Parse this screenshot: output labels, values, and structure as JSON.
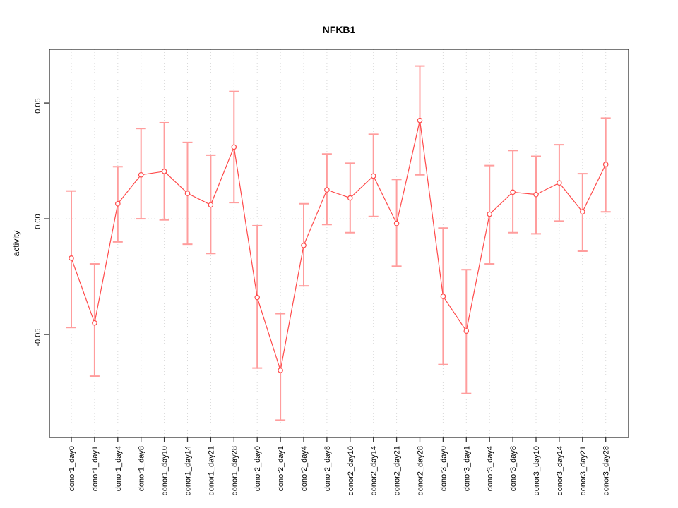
{
  "title": "NFKB1",
  "ylabel": "activity",
  "colors": {
    "series_line": "#ff4a4a",
    "error_bar": "#ff9d9d",
    "grid": "#d8d8d8",
    "zero_line": "#d8d8d8",
    "axis": "#333333",
    "background": "#ffffff"
  },
  "chart_data": {
    "type": "line",
    "title": "NFKB1",
    "xlabel": "",
    "ylabel": "activity",
    "legend": "none",
    "grid": "vertical dotted gridlines per category; dotted horizontal line at y=0",
    "point_style": "open-circle",
    "error_bars": true,
    "ylim": [
      -0.0945,
      0.0732
    ],
    "yticks": [
      0.05,
      0.0,
      -0.05
    ],
    "ytick_labels": [
      "0.05",
      "0.00",
      "-0.05"
    ],
    "categories": [
      "donor1_day0",
      "donor1_day1",
      "donor1_day4",
      "donor1_day8",
      "donor1_day10",
      "donor1_day14",
      "donor1_day21",
      "donor1_day28",
      "donor2_day0",
      "donor2_day1",
      "donor2_day4",
      "donor2_day8",
      "donor2_day10",
      "donor2_day14",
      "donor2_day21",
      "donor2_day28",
      "donor3_day0",
      "donor3_day1",
      "donor3_day4",
      "donor3_day8",
      "donor3_day10",
      "donor3_day14",
      "donor3_day21",
      "donor3_day28"
    ],
    "series": [
      {
        "name": "activity",
        "values": [
          -0.017,
          -0.045,
          0.0065,
          0.019,
          0.0205,
          0.011,
          0.006,
          0.031,
          -0.034,
          -0.0655,
          -0.0115,
          0.0125,
          0.009,
          0.0185,
          -0.002,
          0.0425,
          -0.0335,
          -0.0485,
          0.002,
          0.0115,
          0.0105,
          0.0155,
          0.003,
          0.0235
        ],
        "error_low": [
          -0.047,
          -0.068,
          -0.01,
          0.0,
          -0.0005,
          -0.011,
          -0.015,
          0.007,
          -0.0645,
          -0.087,
          -0.029,
          -0.0025,
          -0.006,
          0.001,
          -0.0205,
          0.019,
          -0.063,
          -0.0755,
          -0.0195,
          -0.006,
          -0.0065,
          -0.001,
          -0.014,
          0.003
        ],
        "error_high": [
          0.012,
          -0.0195,
          0.0225,
          0.039,
          0.0415,
          0.033,
          0.0275,
          0.055,
          -0.003,
          -0.041,
          0.0065,
          0.028,
          0.024,
          0.0365,
          0.017,
          0.066,
          -0.004,
          -0.022,
          0.023,
          0.0295,
          0.027,
          0.032,
          0.0195,
          0.0435
        ]
      }
    ]
  }
}
